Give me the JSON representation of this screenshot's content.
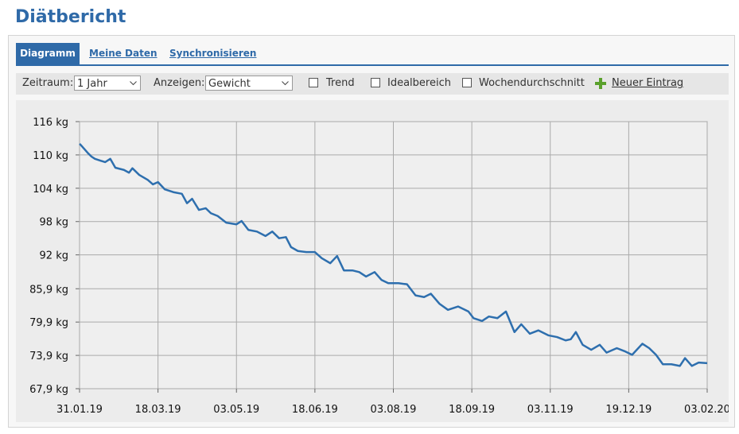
{
  "header": {
    "title": "Diätbericht"
  },
  "tabs": [
    "Diagramm",
    "Meine Daten",
    "Synchronisieren"
  ],
  "toolbar": {
    "period_label": "Zeitraum:",
    "period_value": "1 Jahr",
    "show_label": "Anzeigen:",
    "show_value": "Gewicht",
    "checkboxes": [
      "Trend",
      "Idealbereich",
      "Wochendurchschnitt"
    ],
    "new_entry": "Neuer Eintrag"
  },
  "chart_data": {
    "type": "line",
    "x": [
      "2019-01-31",
      "2019-02-01",
      "2019-02-05",
      "2019-02-07",
      "2019-02-09",
      "2019-02-12",
      "2019-02-15",
      "2019-02-18",
      "2019-02-21",
      "2019-02-26",
      "2019-03-01",
      "2019-03-03",
      "2019-03-07",
      "2019-03-12",
      "2019-03-15",
      "2019-03-18",
      "2019-03-22",
      "2019-03-27",
      "2019-04-01",
      "2019-04-04",
      "2019-04-07",
      "2019-04-11",
      "2019-04-15",
      "2019-04-18",
      "2019-04-22",
      "2019-04-27",
      "2019-05-03",
      "2019-05-06",
      "2019-05-10",
      "2019-05-15",
      "2019-05-20",
      "2019-05-24",
      "2019-05-28",
      "2019-06-01",
      "2019-06-04",
      "2019-06-08",
      "2019-06-13",
      "2019-06-18",
      "2019-06-22",
      "2019-06-27",
      "2019-07-01",
      "2019-07-05",
      "2019-07-10",
      "2019-07-14",
      "2019-07-18",
      "2019-07-23",
      "2019-07-27",
      "2019-07-31",
      "2019-08-06",
      "2019-08-11",
      "2019-08-16",
      "2019-08-21",
      "2019-08-25",
      "2019-08-30",
      "2019-09-04",
      "2019-09-10",
      "2019-09-16",
      "2019-09-19",
      "2019-09-24",
      "2019-09-28",
      "2019-10-03",
      "2019-10-08",
      "2019-10-13",
      "2019-10-17",
      "2019-10-22",
      "2019-10-27",
      "2019-11-02",
      "2019-11-07",
      "2019-11-12",
      "2019-11-15",
      "2019-11-18",
      "2019-11-22",
      "2019-11-27",
      "2019-12-02",
      "2019-12-06",
      "2019-12-12",
      "2019-12-17",
      "2019-12-21",
      "2019-12-27",
      "2019-12-31",
      "2020-01-04",
      "2020-01-08",
      "2020-01-13",
      "2020-01-18",
      "2020-01-21",
      "2020-01-25",
      "2020-01-29",
      "2020-02-03"
    ],
    "series": [
      {
        "color": "#2e6fae",
        "values": [
          112.0,
          111.7,
          110.3,
          109.7,
          109.3,
          109.0,
          108.7,
          109.3,
          107.7,
          107.3,
          106.8,
          107.6,
          106.4,
          105.5,
          104.7,
          105.1,
          103.8,
          103.3,
          103.0,
          101.3,
          102.1,
          100.1,
          100.4,
          99.5,
          99.0,
          97.8,
          97.5,
          98.1,
          96.5,
          96.2,
          95.4,
          96.2,
          95.0,
          95.2,
          93.4,
          92.7,
          92.5,
          92.5,
          91.4,
          90.5,
          91.8,
          89.2,
          89.2,
          88.9,
          88.1,
          88.9,
          87.5,
          86.9,
          86.9,
          86.7,
          84.7,
          84.4,
          85.0,
          83.2,
          82.1,
          82.7,
          81.8,
          80.6,
          80.1,
          80.9,
          80.6,
          81.8,
          78.1,
          79.5,
          77.8,
          78.4,
          77.5,
          77.2,
          76.6,
          76.8,
          78.1,
          75.8,
          74.9,
          75.8,
          74.4,
          75.2,
          74.6,
          74.0,
          76.0,
          75.2,
          74.0,
          72.3,
          72.3,
          72.0,
          73.4,
          72.0,
          72.6,
          72.5
        ]
      }
    ],
    "xlim": [
      "2019-01-31",
      "2020-02-03"
    ],
    "xticks": [
      {
        "value": "2019-01-31",
        "label": "31.01.19"
      },
      {
        "value": "2019-03-18",
        "label": "18.03.19"
      },
      {
        "value": "2019-05-03",
        "label": "03.05.19"
      },
      {
        "value": "2019-06-18",
        "label": "18.06.19"
      },
      {
        "value": "2019-08-03",
        "label": "03.08.19"
      },
      {
        "value": "2019-09-18",
        "label": "18.09.19"
      },
      {
        "value": "2019-11-03",
        "label": "03.11.19"
      },
      {
        "value": "2019-12-19",
        "label": "19.12.19"
      },
      {
        "value": "2020-02-03",
        "label": "03.02.20"
      }
    ],
    "ylim": [
      67.9,
      116
    ],
    "yticks": [
      {
        "value": 67.9,
        "label": "67,9 kg"
      },
      {
        "value": 73.9,
        "label": "73,9 kg"
      },
      {
        "value": 79.9,
        "label": "79,9 kg"
      },
      {
        "value": 85.9,
        "label": "85,9 kg"
      },
      {
        "value": 92,
        "label": "92 kg"
      },
      {
        "value": 98,
        "label": "98 kg"
      },
      {
        "value": 104,
        "label": "104 kg"
      },
      {
        "value": 110,
        "label": "110 kg"
      },
      {
        "value": 116,
        "label": "116 kg"
      }
    ],
    "grid": true
  }
}
